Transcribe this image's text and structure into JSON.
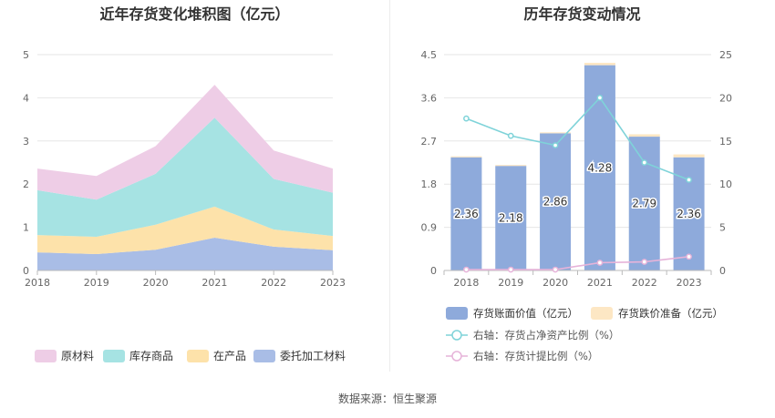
{
  "source_text": "数据来源：恒生聚源",
  "chart_data": [
    {
      "type": "area",
      "title": "近年存货变化堆积图（亿元）",
      "x": [
        "2018",
        "2019",
        "2020",
        "2021",
        "2022",
        "2023"
      ],
      "y_ticks": [
        "0",
        "1",
        "2",
        "3",
        "4",
        "5"
      ],
      "ylim": [
        0,
        5
      ],
      "stacked": true,
      "grid": true,
      "legend_position": "bottom",
      "series": [
        {
          "name": "委托加工材料",
          "color": "#a9bde6",
          "values": [
            0.42,
            0.38,
            0.48,
            0.76,
            0.55,
            0.47
          ]
        },
        {
          "name": "在产品",
          "color": "#fde2aa",
          "values": [
            0.4,
            0.4,
            0.58,
            0.72,
            0.4,
            0.33
          ]
        },
        {
          "name": "库存商品",
          "color": "#a6e3e3",
          "values": [
            1.04,
            0.86,
            1.18,
            2.06,
            1.17,
            1.0
          ]
        },
        {
          "name": "原材料",
          "color": "#eecde6",
          "values": [
            0.5,
            0.55,
            0.64,
            0.76,
            0.66,
            0.56
          ]
        }
      ],
      "legend_order": [
        "原材料",
        "库存商品",
        "在产品",
        "委托加工材料"
      ]
    },
    {
      "type": "bar",
      "title": "历年存货变动情况",
      "categories": [
        "2018",
        "2019",
        "2020",
        "2021",
        "2022",
        "2023"
      ],
      "y_left_ticks": [
        "0",
        "0.9",
        "1.8",
        "2.7",
        "3.6",
        "4.5"
      ],
      "y_left_lim": [
        0,
        4.5
      ],
      "y_right_ticks": [
        "0",
        "5",
        "10",
        "15",
        "20",
        "25"
      ],
      "y_right_lim": [
        0,
        25
      ],
      "grid": true,
      "legend_position": "bottom",
      "bar_series": [
        {
          "name": "存货账面价值（亿元）",
          "color": "#8eaadb",
          "values": [
            2.36,
            2.18,
            2.86,
            4.28,
            2.79,
            2.36
          ],
          "labels": [
            "2.36",
            "2.18",
            "2.86",
            "4.28",
            "2.79",
            "2.36"
          ]
        },
        {
          "name": "存货跌价准备（亿元）",
          "color": "#fde7c4",
          "values": [
            0.02,
            0.02,
            0.02,
            0.05,
            0.05,
            0.06
          ]
        }
      ],
      "line_series": [
        {
          "name": "右轴：存货占净资产比例（%）",
          "color": "#7fd3d9",
          "values": [
            17.6,
            15.6,
            14.5,
            20.0,
            12.5,
            10.5
          ]
        },
        {
          "name": "右轴：存货计提比例（%）",
          "color": "#e6b3d9",
          "values": [
            0.1,
            0.1,
            0.1,
            0.9,
            1.0,
            1.6
          ]
        }
      ]
    }
  ]
}
